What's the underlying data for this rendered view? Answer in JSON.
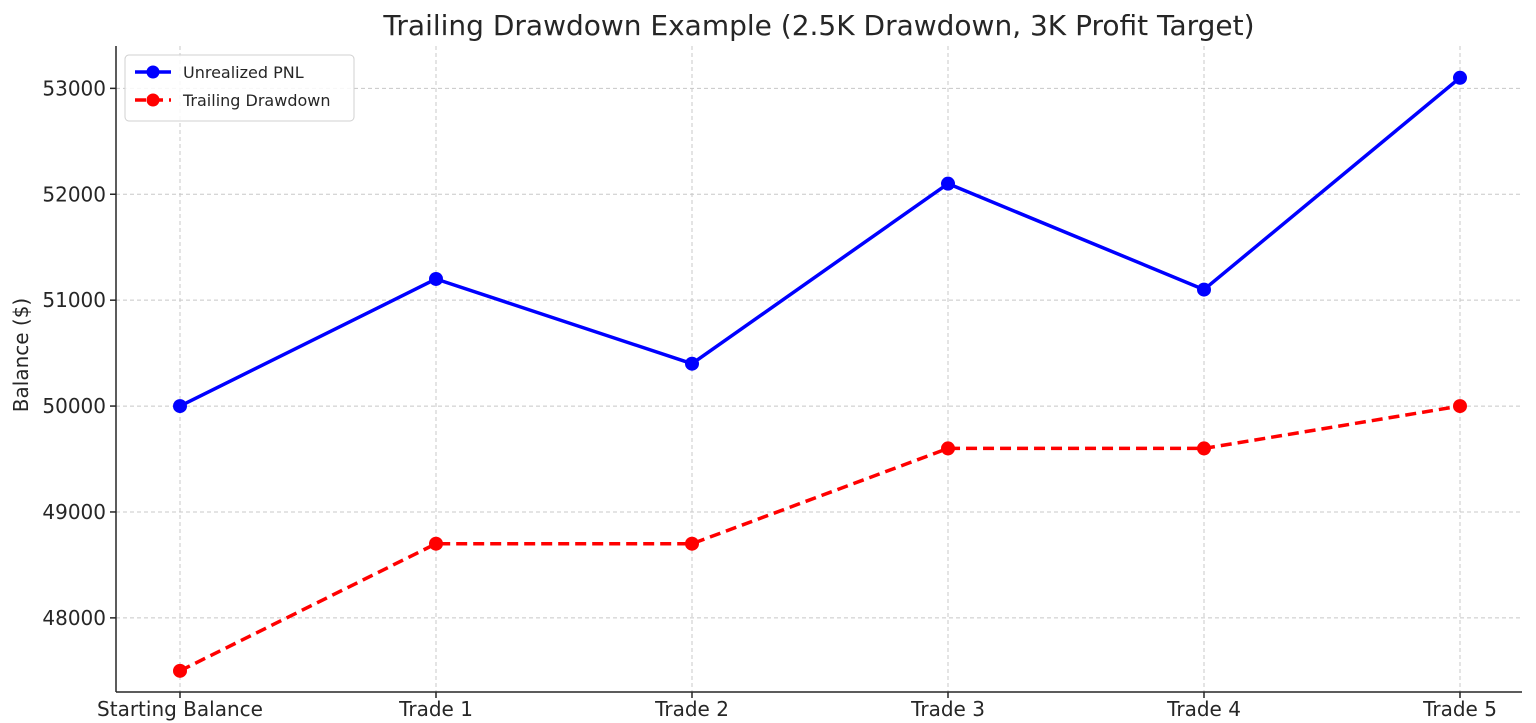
{
  "chart_data": {
    "type": "line",
    "title": "Trailing Drawdown Example (2.5K Drawdown, 3K Profit Target)",
    "xlabel": "",
    "ylabel": "Balance ($)",
    "categories": [
      "Starting Balance",
      "Trade 1",
      "Trade 2",
      "Trade 3",
      "Trade 4",
      "Trade 5"
    ],
    "y_ticks": [
      48000,
      49000,
      50000,
      51000,
      52000,
      53000
    ],
    "ylim": [
      47300,
      53400
    ],
    "grid": true,
    "legend_position": "top-left",
    "series": [
      {
        "name": "Unrealized PNL",
        "color": "#0000ff",
        "line_style": "solid",
        "marker": "circle",
        "values": [
          50000,
          51200,
          50400,
          52100,
          51100,
          53100
        ]
      },
      {
        "name": "Trailing Drawdown",
        "color": "#ff0000",
        "line_style": "dashed",
        "marker": "circle",
        "values": [
          47500,
          48700,
          48700,
          49600,
          49600,
          50000
        ]
      }
    ]
  }
}
